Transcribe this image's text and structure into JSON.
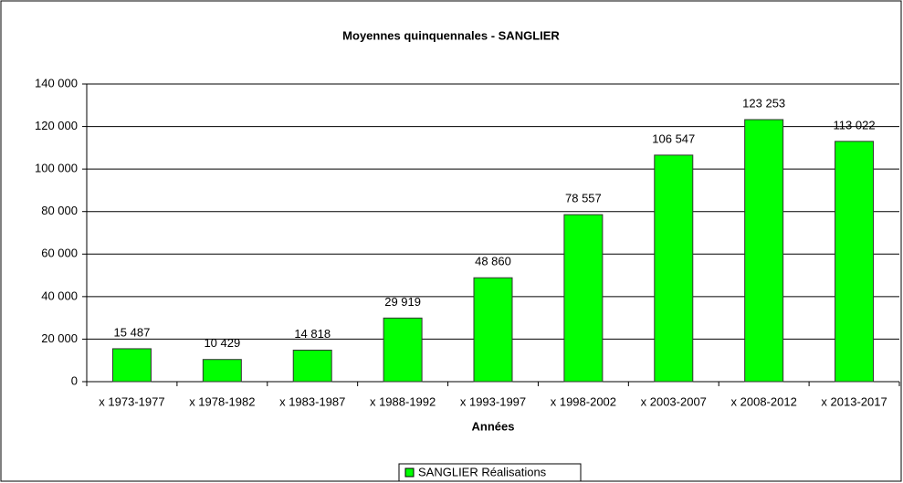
{
  "chart_data": {
    "type": "bar",
    "title": "Moyennes quinquennales - SANGLIER",
    "x_label": "Années",
    "categories": [
      "x 1973-1977",
      "x 1978-1982",
      "x 1983-1987",
      "x 1988-1992",
      "x 1993-1997",
      "x 1998-2002",
      "x 2003-2007",
      "x 2008-2012",
      "x 2013-2017"
    ],
    "series": [
      {
        "name": "SANGLIER Réalisations",
        "color": "#00ff00",
        "values": [
          15487,
          10429,
          14818,
          29919,
          48860,
          78557,
          106547,
          123253,
          113022
        ],
        "value_labels": [
          "15 487",
          "10 429",
          "14 818",
          "29 919",
          "48 860",
          "78 557",
          "106 547",
          "123 253",
          "113 022"
        ]
      }
    ],
    "ylim": [
      0,
      140000
    ],
    "yticks": [
      0,
      {
        "value": 20000,
        "label": "20 000"
      },
      {
        "value": 40000,
        "label": "40 000"
      },
      {
        "value": 60000,
        "label": "60 000"
      },
      {
        "value": 80000,
        "label": "80 000"
      },
      {
        "value": 100000,
        "label": "100 000"
      },
      {
        "value": 120000,
        "label": "120 000"
      },
      {
        "value": 140000,
        "label": "140 000"
      }
    ],
    "grid": true,
    "legend": "bottom"
  }
}
